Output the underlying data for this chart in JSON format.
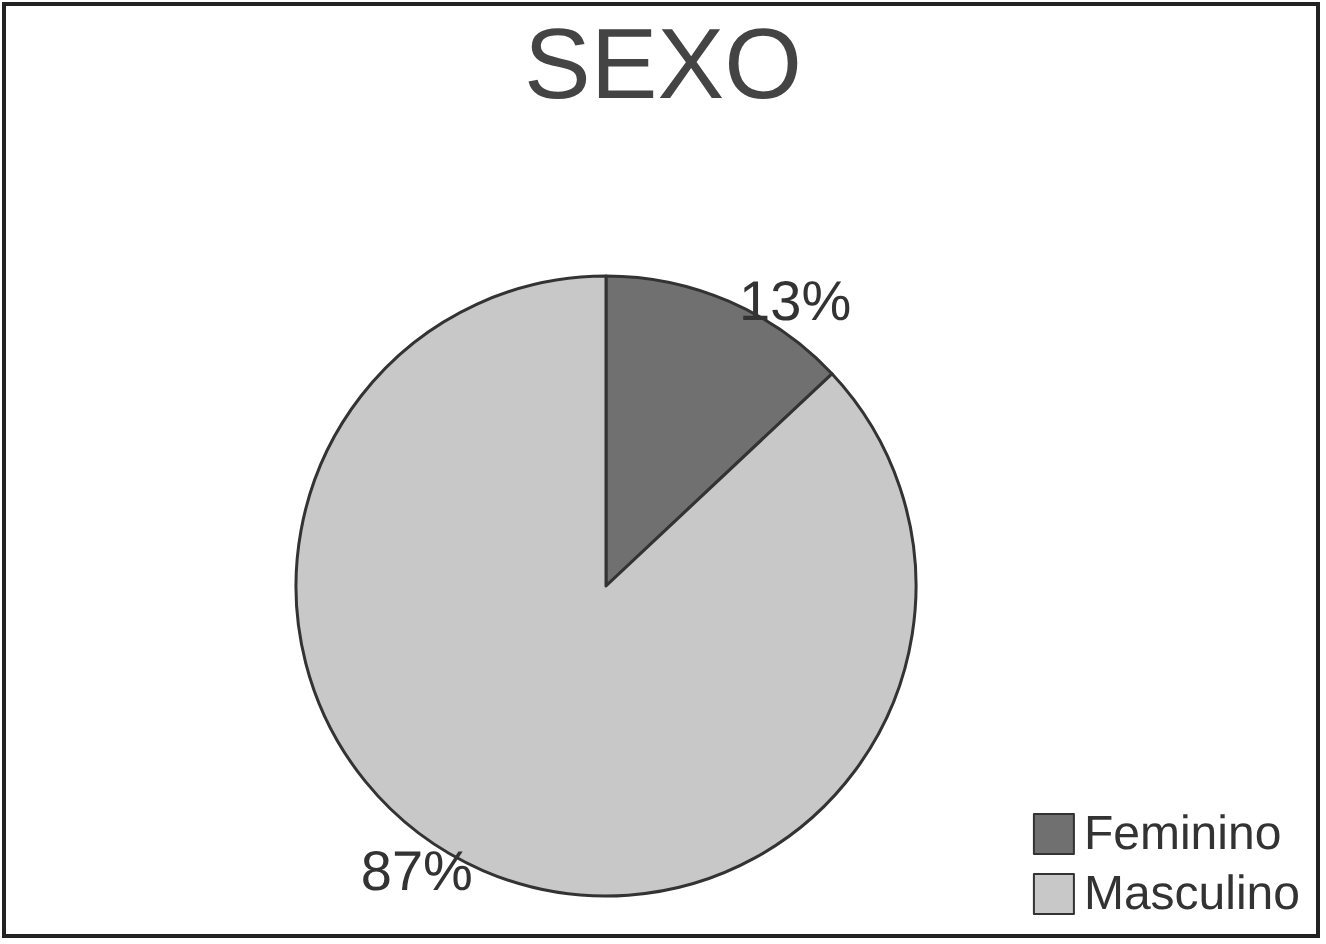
{
  "chart_data": {
    "type": "pie",
    "title": "SEXO",
    "categories": [
      "Feminino",
      "Masculino"
    ],
    "values": [
      13,
      87
    ],
    "colors": [
      "#707070",
      "#c8c8c8"
    ],
    "value_labels": [
      "13%",
      "87%"
    ],
    "legend": "bottom right"
  }
}
